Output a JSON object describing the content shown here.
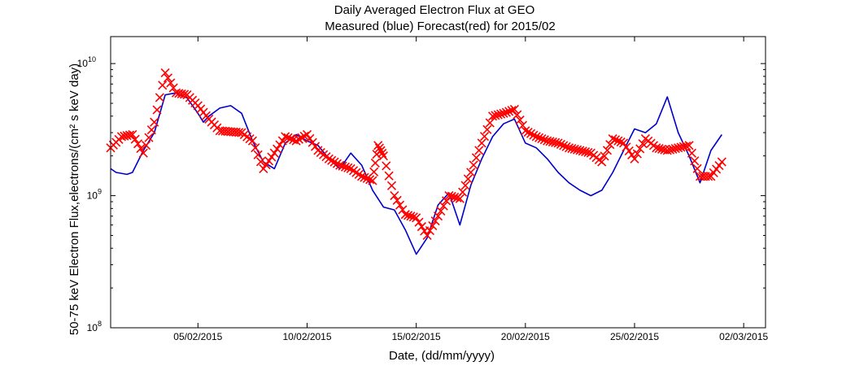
{
  "chart_data": {
    "type": "line",
    "title": "Daily Averaged Electron Flux at GEO",
    "subtitle": "Measured (blue) Forecast(red) for 2015/02",
    "xlabel": "Date, (dd/mm/yyyy)",
    "ylabel": "50-75 keV Electron Flux,electrons/(cm² s keV day)",
    "yscale": "log",
    "ylim": [
      100000000,
      16000000000
    ],
    "xlim": [
      "01/02/2015",
      "03/03/2015"
    ],
    "x_ticks": [
      "05/02/2015",
      "10/02/2015",
      "15/02/2015",
      "20/02/2015",
      "25/02/2015",
      "02/03/2015"
    ],
    "y_ticks": [
      {
        "value": 100000000,
        "base": "10",
        "exp": "8"
      },
      {
        "value": 1000000000,
        "base": "10",
        "exp": "9"
      },
      {
        "value": 10000000000,
        "base": "10",
        "exp": "10"
      }
    ],
    "grid": false,
    "series": [
      {
        "name": "Measured",
        "color": "#0000cc",
        "style": "line",
        "points": [
          [
            "01/02/2015",
            1600000000.0
          ],
          [
            "01/02/2015 06:00",
            1500000000.0
          ],
          [
            "01/02/2015 18:00",
            1450000000.0
          ],
          [
            "02/02/2015",
            1500000000.0
          ],
          [
            "02/02/2015 12:00",
            2200000000.0
          ],
          [
            "03/02/2015",
            3000000000.0
          ],
          [
            "03/02/2015 12:00",
            5800000000.0
          ],
          [
            "04/02/2015",
            6000000000.0
          ],
          [
            "04/02/2015 12:00",
            5500000000.0
          ],
          [
            "05/02/2015",
            4200000000.0
          ],
          [
            "05/02/2015 06:00",
            3600000000.0
          ],
          [
            "05/02/2015 12:00",
            4000000000.0
          ],
          [
            "06/02/2015",
            4600000000.0
          ],
          [
            "06/02/2015 12:00",
            4800000000.0
          ],
          [
            "07/02/2015",
            4200000000.0
          ],
          [
            "07/02/2015 12:00",
            2600000000.0
          ],
          [
            "08/02/2015",
            1800000000.0
          ],
          [
            "08/02/2015 12:00",
            1600000000.0
          ],
          [
            "09/02/2015",
            2500000000.0
          ],
          [
            "09/02/2015 12:00",
            2900000000.0
          ],
          [
            "10/02/2015",
            2600000000.0
          ],
          [
            "10/02/2015 12:00",
            2400000000.0
          ],
          [
            "11/02/2015",
            1900000000.0
          ],
          [
            "11/02/2015 12:00",
            1600000000.0
          ],
          [
            "12/02/2015",
            2100000000.0
          ],
          [
            "12/02/2015 12:00",
            1700000000.0
          ],
          [
            "13/02/2015",
            1100000000.0
          ],
          [
            "13/02/2015 12:00",
            820000000.0
          ],
          [
            "14/02/2015",
            780000000.0
          ],
          [
            "14/02/2015 12:00",
            550000000.0
          ],
          [
            "15/02/2015",
            360000000.0
          ],
          [
            "15/02/2015 12:00",
            480000000.0
          ],
          [
            "16/02/2015",
            850000000.0
          ],
          [
            "16/02/2015 12:00",
            1050000000.0
          ],
          [
            "17/02/2015",
            600000000.0
          ],
          [
            "17/02/2015 12:00",
            1200000000.0
          ],
          [
            "18/02/2015",
            1900000000.0
          ],
          [
            "18/02/2015 12:00",
            2800000000.0
          ],
          [
            "19/02/2015",
            3500000000.0
          ],
          [
            "19/02/2015 12:00",
            3800000000.0
          ],
          [
            "20/02/2015",
            2500000000.0
          ],
          [
            "20/02/2015 12:00",
            2300000000.0
          ],
          [
            "21/02/2015",
            1900000000.0
          ],
          [
            "21/02/2015 12:00",
            1500000000.0
          ],
          [
            "22/02/2015",
            1250000000.0
          ],
          [
            "22/02/2015 12:00",
            1100000000.0
          ],
          [
            "23/02/2015",
            1000000000.0
          ],
          [
            "23/02/2015 12:00",
            1100000000.0
          ],
          [
            "24/02/2015",
            1500000000.0
          ],
          [
            "24/02/2015 12:00",
            2200000000.0
          ],
          [
            "25/02/2015",
            3200000000.0
          ],
          [
            "25/02/2015 12:00",
            3000000000.0
          ],
          [
            "26/02/2015",
            3500000000.0
          ],
          [
            "26/02/2015 12:00",
            5600000000.0
          ],
          [
            "27/02/2015",
            3000000000.0
          ],
          [
            "27/02/2015 12:00",
            2000000000.0
          ],
          [
            "28/02/2015",
            1250000000.0
          ],
          [
            "28/02/2015 12:00",
            2200000000.0
          ],
          [
            "01/03/2015",
            2900000000.0
          ]
        ]
      },
      {
        "name": "Forecast",
        "color": "#ff0000",
        "style": "x-markers",
        "points": [
          [
            "01/02/2015",
            2300000000.0
          ],
          [
            "01/02/2015 12:00",
            2800000000.0
          ],
          [
            "02/02/2015",
            2900000000.0
          ],
          [
            "02/02/2015 12:00",
            2100000000.0
          ],
          [
            "03/02/2015",
            3600000000.0
          ],
          [
            "03/02/2015 12:00",
            8500000000.0
          ],
          [
            "04/02/2015",
            6000000000.0
          ],
          [
            "04/02/2015 12:00",
            5800000000.0
          ],
          [
            "05/02/2015",
            4800000000.0
          ],
          [
            "05/02/2015 12:00",
            3800000000.0
          ],
          [
            "06/02/2015",
            3100000000.0
          ],
          [
            "06/02/2015 12:00",
            3050000000.0
          ],
          [
            "07/02/2015",
            3000000000.0
          ],
          [
            "07/02/2015 12:00",
            2600000000.0
          ],
          [
            "08/02/2015",
            1600000000.0
          ],
          [
            "08/02/2015 12:00",
            2100000000.0
          ],
          [
            "09/02/2015",
            2800000000.0
          ],
          [
            "09/02/2015 12:00",
            2600000000.0
          ],
          [
            "10/02/2015",
            2900000000.0
          ],
          [
            "10/02/2015 12:00",
            2200000000.0
          ],
          [
            "11/02/2015",
            1900000000.0
          ],
          [
            "11/02/2015 12:00",
            1700000000.0
          ],
          [
            "12/02/2015",
            1600000000.0
          ],
          [
            "12/02/2015 12:00",
            1400000000.0
          ],
          [
            "13/02/2015",
            1300000000.0
          ],
          [
            "13/02/2015 06:00",
            2400000000.0
          ],
          [
            "13/02/2015 12:00",
            2000000000.0
          ],
          [
            "14/02/2015",
            1000000000.0
          ],
          [
            "14/02/2015 12:00",
            720000000.0
          ],
          [
            "15/02/2015",
            680000000.0
          ],
          [
            "15/02/2015 12:00",
            500000000.0
          ],
          [
            "16/02/2015",
            700000000.0
          ],
          [
            "16/02/2015 12:00",
            1000000000.0
          ],
          [
            "17/02/2015",
            950000000.0
          ],
          [
            "17/02/2015 12:00",
            1500000000.0
          ],
          [
            "18/02/2015",
            2500000000.0
          ],
          [
            "18/02/2015 12:00",
            4000000000.0
          ],
          [
            "19/02/2015",
            4200000000.0
          ],
          [
            "19/02/2015 12:00",
            4500000000.0
          ],
          [
            "20/02/2015",
            3100000000.0
          ],
          [
            "20/02/2015 12:00",
            2800000000.0
          ],
          [
            "21/02/2015",
            2600000000.0
          ],
          [
            "21/02/2015 12:00",
            2500000000.0
          ],
          [
            "22/02/2015",
            2300000000.0
          ],
          [
            "22/02/2015 12:00",
            2200000000.0
          ],
          [
            "23/02/2015",
            2100000000.0
          ],
          [
            "23/02/2015 12:00",
            1800000000.0
          ],
          [
            "24/02/2015",
            2700000000.0
          ],
          [
            "24/02/2015 12:00",
            2500000000.0
          ],
          [
            "25/02/2015",
            1900000000.0
          ],
          [
            "25/02/2015 12:00",
            2700000000.0
          ],
          [
            "26/02/2015",
            2300000000.0
          ],
          [
            "26/02/2015 12:00",
            2200000000.0
          ],
          [
            "27/02/2015",
            2300000000.0
          ],
          [
            "27/02/2015 12:00",
            2400000000.0
          ],
          [
            "28/02/2015",
            1400000000.0
          ],
          [
            "28/02/2015 12:00",
            1400000000.0
          ],
          [
            "01/03/2015",
            1800000000.0
          ]
        ]
      }
    ]
  }
}
